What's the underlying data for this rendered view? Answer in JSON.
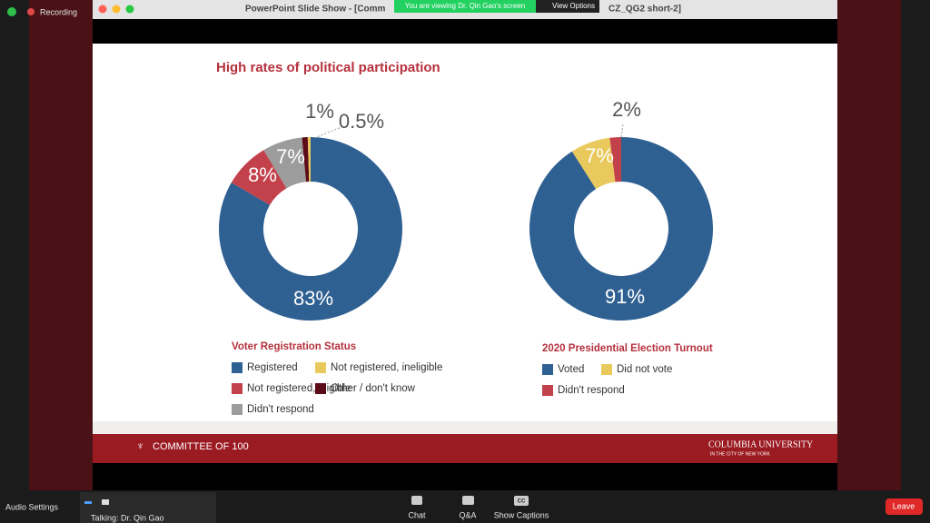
{
  "zoom": {
    "recording": "Recording",
    "window_title_left": "PowerPoint Slide Show - [Comm",
    "window_title_right": "CZ_QG2 short-2]",
    "viewing_banner": "You are viewing Dr. Qin Gao's screen",
    "view_options": "View Options",
    "audio_settings": "Audio Settings",
    "talking": "Talking: Dr. Qin Gao",
    "chat": "Chat",
    "qa": "Q&A",
    "cc_icon": "CC",
    "show_captions": "Show Captions",
    "leave": "Leave"
  },
  "slide": {
    "title": "High rates of political participation",
    "footer_left": "COMMITTEE OF 100",
    "footer_right": "COLUMBIA UNIVERSITY",
    "footer_right_sub": "IN THE CITY OF NEW YORK"
  },
  "chart_data": [
    {
      "type": "pie",
      "title": "Voter Registration Status",
      "categories": [
        "Registered",
        "Not registered, eligible",
        "Didn't respond",
        "Other / don't know",
        "Not registered, ineligible"
      ],
      "values": [
        83,
        8,
        7,
        1,
        0.5
      ],
      "value_labels": [
        "83%",
        "8%",
        "7%",
        "1%",
        "0.5%"
      ],
      "colors": [
        "#2f6092",
        "#c3414b",
        "#9c9c9c",
        "#5c0c18",
        "#e9c95c"
      ]
    },
    {
      "type": "pie",
      "title": "2020 Presidential Election Turnout",
      "categories": [
        "Voted",
        "Did not vote",
        "Didn't respond"
      ],
      "values": [
        91,
        7,
        2
      ],
      "value_labels": [
        "91%",
        "7%",
        "2%"
      ],
      "colors": [
        "#2f6092",
        "#e9c95c",
        "#c3414b"
      ]
    }
  ]
}
